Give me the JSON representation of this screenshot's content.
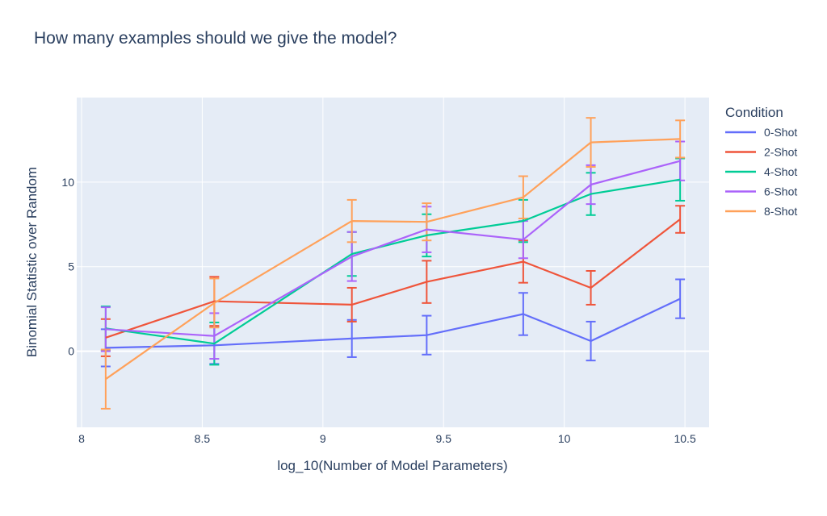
{
  "chart_data": {
    "type": "line",
    "title": "How many examples should we give the model?",
    "xlabel": "log_10(Number of Model Parameters)",
    "ylabel": "Binomial Statistic over Random",
    "xlim": [
      7.98,
      10.6
    ],
    "ylim": [
      -4.5,
      15
    ],
    "x_ticks": [
      8,
      8.5,
      9,
      9.5,
      10,
      10.5
    ],
    "x_tick_labels": [
      "8",
      "8.5",
      "9",
      "9.5",
      "10",
      "10.5"
    ],
    "y_ticks": [
      0,
      5,
      10
    ],
    "y_tick_labels": [
      "0",
      "5",
      "10"
    ],
    "grid": true,
    "plot_background": "#e5ecf6",
    "legend": {
      "title": "Condition",
      "placement": "right"
    },
    "x": [
      8.1,
      8.55,
      9.12,
      9.43,
      9.83,
      10.11,
      10.48
    ],
    "series": [
      {
        "name": "0-Shot",
        "color": "#636efa",
        "values": [
          0.2,
          0.35,
          0.75,
          0.95,
          2.2,
          0.6,
          3.1
        ],
        "error": [
          1.1,
          1.1,
          1.1,
          1.15,
          1.25,
          1.15,
          1.15
        ]
      },
      {
        "name": "2-Shot",
        "color": "#ef553b",
        "values": [
          0.8,
          2.95,
          2.75,
          4.1,
          5.3,
          3.75,
          7.8
        ],
        "error": [
          1.1,
          1.45,
          1.0,
          1.25,
          1.25,
          1.0,
          0.8
        ]
      },
      {
        "name": "4-Shot",
        "color": "#00cc96",
        "values": [
          1.35,
          0.45,
          5.75,
          6.85,
          7.7,
          9.3,
          10.15
        ],
        "error": [
          1.3,
          1.25,
          1.3,
          1.25,
          1.25,
          1.25,
          1.25
        ]
      },
      {
        "name": "6-Shot",
        "color": "#ab63fa",
        "values": [
          1.3,
          0.9,
          5.6,
          7.2,
          6.6,
          9.85,
          11.25
        ],
        "error": [
          1.3,
          1.35,
          1.45,
          1.35,
          1.1,
          1.15,
          1.15
        ]
      },
      {
        "name": "8-Shot",
        "color": "#ffa15a",
        "values": [
          -1.65,
          2.85,
          7.7,
          7.65,
          9.1,
          12.35,
          12.55
        ],
        "error": [
          1.75,
          1.45,
          1.25,
          1.1,
          1.25,
          1.45,
          1.1
        ]
      }
    ]
  }
}
